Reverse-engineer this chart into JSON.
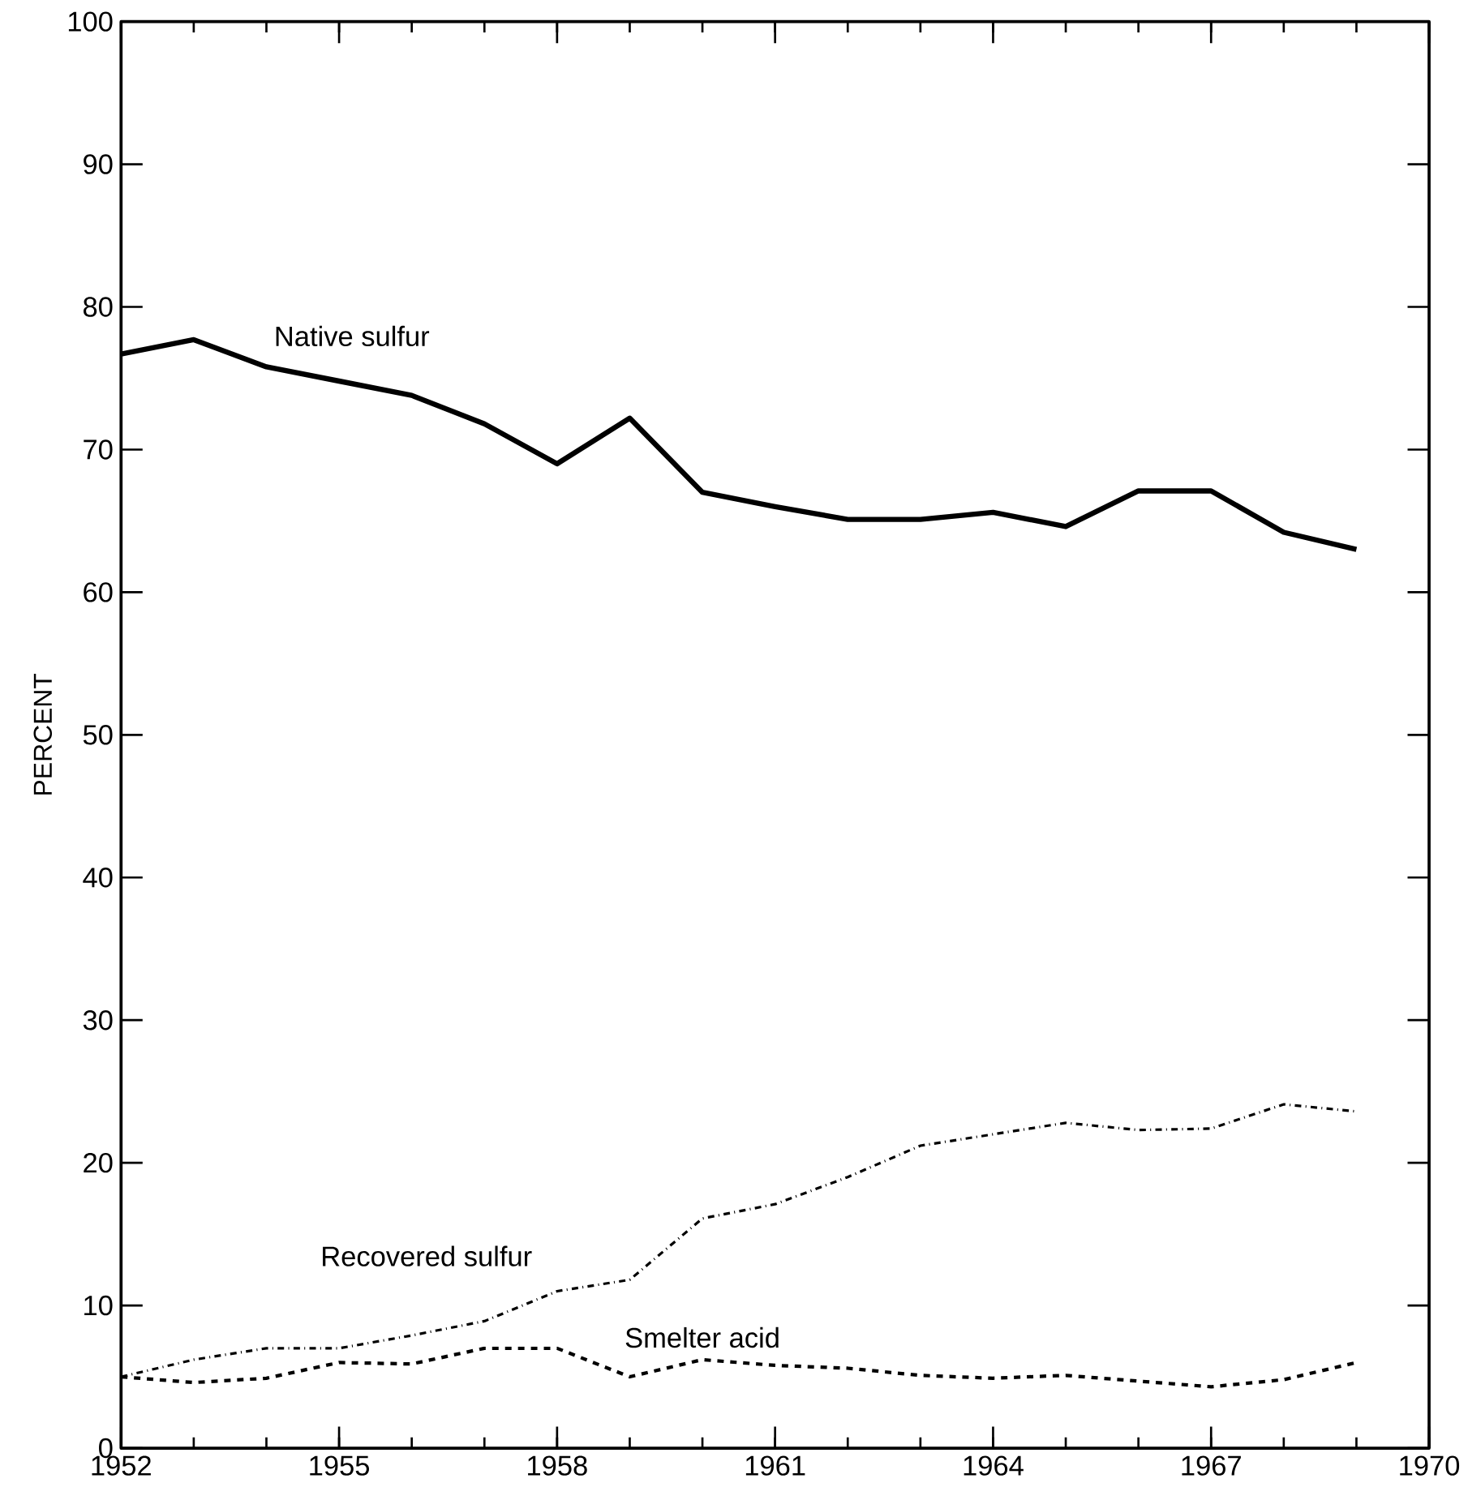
{
  "chart_data": {
    "type": "line",
    "ylabel": "PERCENT",
    "x": [
      1952,
      1953,
      1954,
      1955,
      1956,
      1957,
      1958,
      1959,
      1960,
      1961,
      1962,
      1963,
      1964,
      1965,
      1966,
      1967,
      1968,
      1969
    ],
    "series": [
      {
        "name": "Native sulfur",
        "color": "#000000",
        "line_style": "solid",
        "values": [
          76.7,
          77.7,
          75.8,
          74.8,
          73.8,
          71.8,
          69,
          72.2,
          67,
          66,
          65.1,
          65.1,
          65.6,
          64.6,
          67.1,
          67.1,
          64.2,
          63
        ]
      },
      {
        "name": "Recovered sulfur",
        "color": "#000000",
        "line_style": "dashdot",
        "values": [
          5,
          6.2,
          7,
          7,
          7.9,
          8.9,
          11,
          11.8,
          16.1,
          17.1,
          19,
          21.2,
          22,
          22.8,
          22.3,
          22.4,
          24.1,
          23.6
        ]
      },
      {
        "name": "Smelter acid",
        "color": "#000000",
        "line_style": "dashed",
        "values": [
          5,
          4.6,
          4.9,
          6,
          5.9,
          7,
          7,
          5,
          6.2,
          5.8,
          5.6,
          5.1,
          4.9,
          5.1,
          4.7,
          4.3,
          4.8,
          6
        ]
      }
    ],
    "xlim": [
      1952,
      1970
    ],
    "xticks": [
      1952,
      1955,
      1958,
      1961,
      1964,
      1967,
      1970
    ],
    "ylim": [
      0,
      100
    ],
    "yticks": [
      0,
      10,
      20,
      30,
      40,
      50,
      60,
      70,
      80,
      90,
      100
    ],
    "grid": false,
    "legend": false
  }
}
